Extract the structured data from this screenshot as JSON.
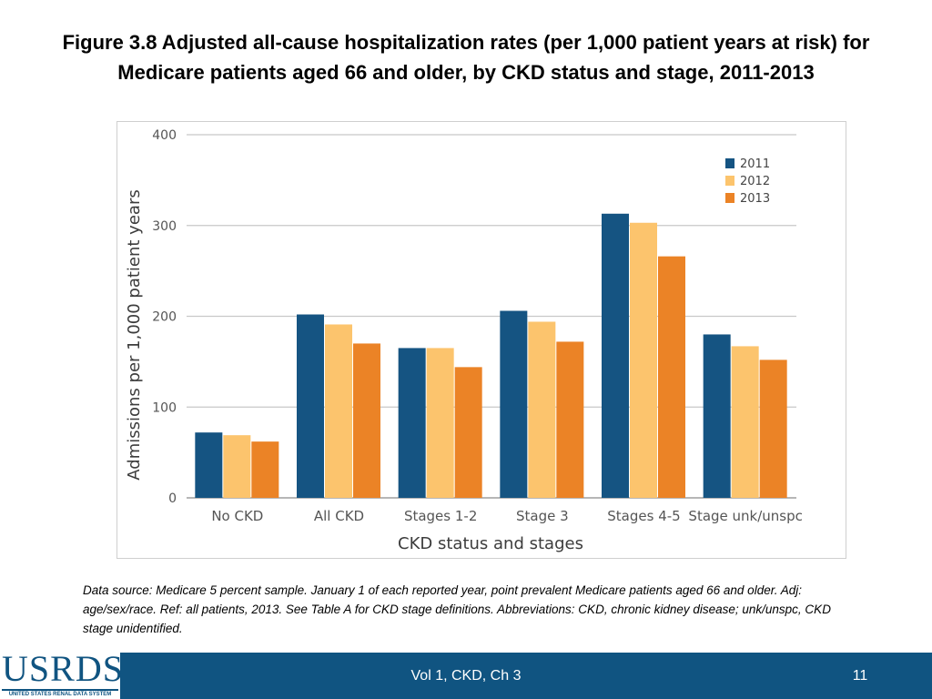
{
  "slide": {
    "title_line1": "Figure 3.8  Adjusted all-cause hospitalization rates (per 1,000 patient years at risk) for",
    "title_line2": "Medicare patients aged 66 and older, by CKD status and stage, 2011-2013"
  },
  "chart_data": {
    "type": "bar",
    "title": "",
    "xlabel": "CKD status and stages",
    "ylabel": "Admissions per 1,000 patient years",
    "ylim": [
      0,
      400
    ],
    "yticks": [
      0,
      100,
      200,
      300,
      400
    ],
    "grid": true,
    "legend_position": "top-right",
    "categories": [
      "No CKD",
      "All CKD",
      "Stages 1-2",
      "Stage 3",
      "Stages 4-5",
      "Stage unk/unspc"
    ],
    "series": [
      {
        "name": "2011",
        "color": "#155482",
        "values": [
          72,
          202,
          165,
          206,
          313,
          180
        ]
      },
      {
        "name": "2012",
        "color": "#fcc46d",
        "values": [
          69,
          191,
          165,
          194,
          303,
          167
        ]
      },
      {
        "name": "2013",
        "color": "#eb8326",
        "values": [
          62,
          170,
          144,
          172,
          266,
          152
        ]
      }
    ]
  },
  "footnote": {
    "text": "Data source: Medicare 5 percent sample. January 1 of each reported year, point prevalent Medicare patients aged 66 and older. Adj: age/sex/race. Ref: all patients, 2013. See Table A for CKD stage definitions. Abbreviations: CKD, chronic kidney disease; unk/unspc, CKD stage unidentified."
  },
  "footer": {
    "logo_text": "USRDS",
    "logo_subtext": "UNITED STATES RENAL DATA SYSTEM",
    "center_text": "Vol 1, CKD, Ch 3",
    "page_number": "11",
    "bar_color": "#105481"
  }
}
